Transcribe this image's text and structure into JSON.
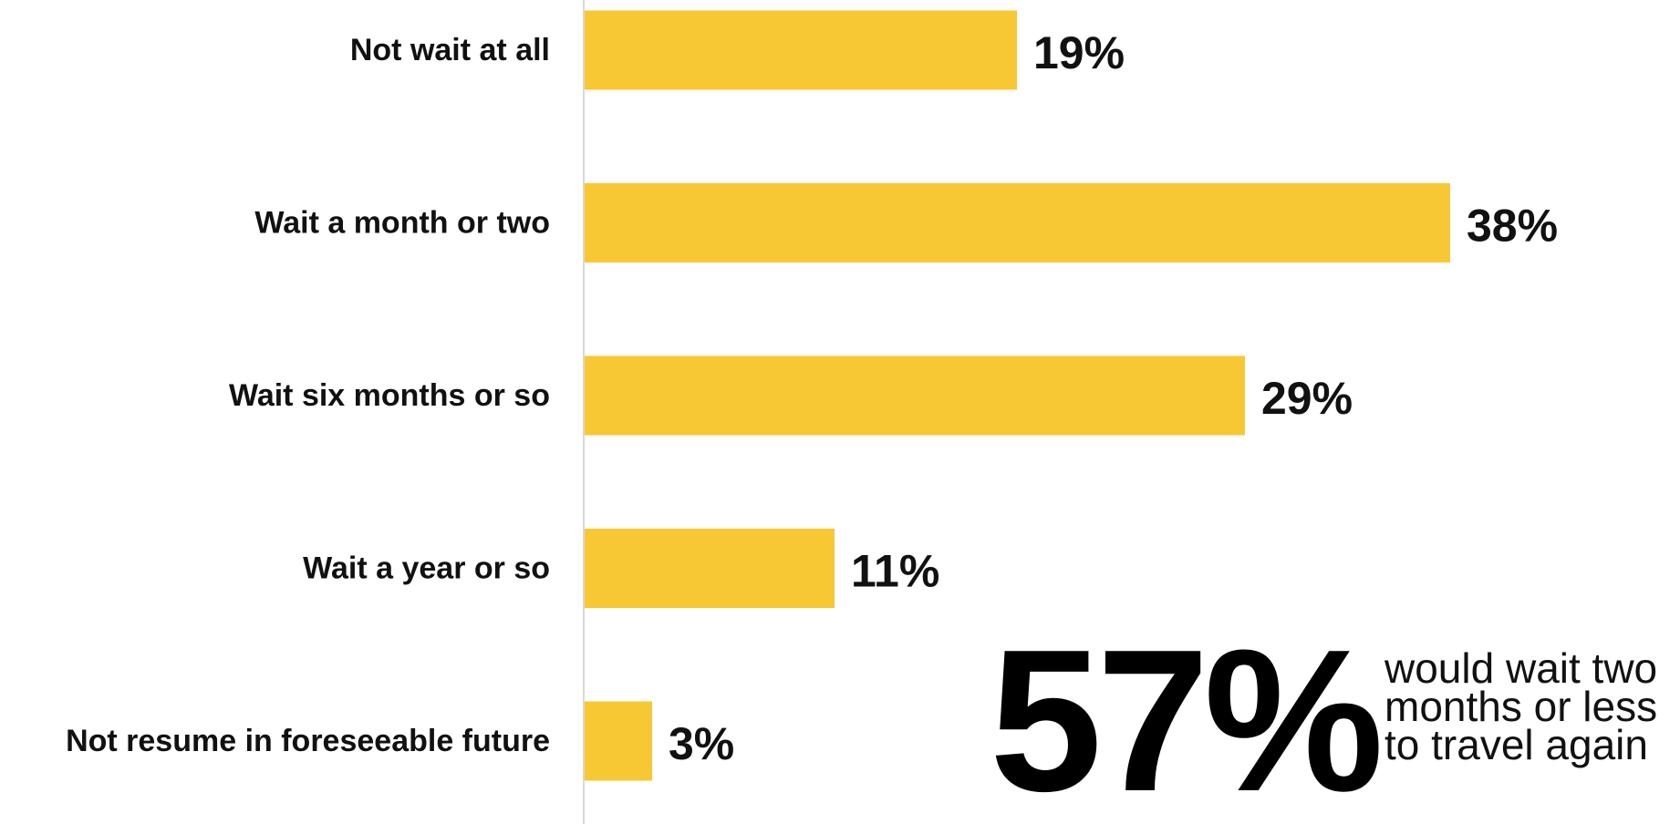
{
  "chart_data": {
    "type": "bar",
    "orientation": "horizontal",
    "categories": [
      "Not wait at all",
      "Wait a month or two",
      "Wait six months or so",
      "Wait a year or so",
      "Not resume in foreseeable future"
    ],
    "values": [
      19,
      38,
      29,
      11,
      3
    ],
    "value_labels": [
      "19%",
      "38%",
      "29%",
      "11%",
      "3%"
    ],
    "unit": "%",
    "xlim": [
      0,
      40
    ],
    "bar_color": "#F8C734",
    "axis_color": "#D9D9D9",
    "grid": false,
    "legend": "none"
  },
  "callout": {
    "number": "57%",
    "lines": [
      "would wait two",
      "months or less",
      "to travel again"
    ]
  }
}
